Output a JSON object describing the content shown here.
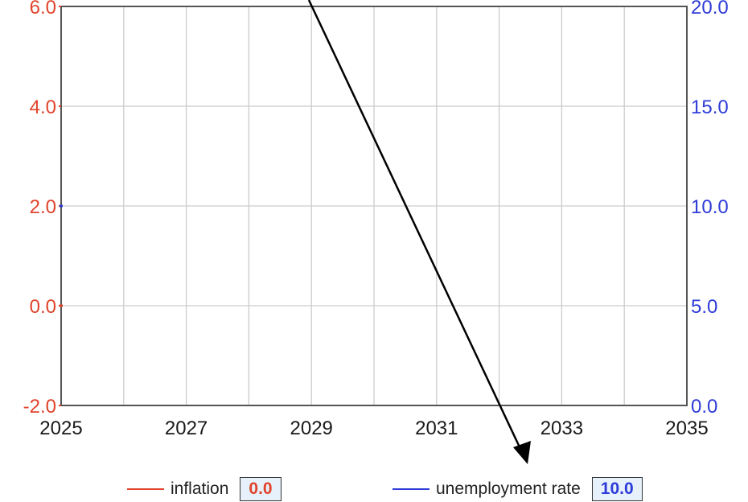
{
  "colors": {
    "left_axis": "#e0442c",
    "right_axis": "#2e3bd8",
    "grid": "#cccccc",
    "frame": "#555555",
    "arrow": "#000000"
  },
  "chart_data": {
    "type": "line",
    "x_ticks": [
      "2025",
      "2027",
      "2029",
      "2031",
      "2033",
      "2035"
    ],
    "xlim": [
      2025,
      2035
    ],
    "y_left_ticks": [
      "6.0",
      "4.0",
      "2.0",
      "0.0",
      "-2.0"
    ],
    "ylim_left": [
      -2,
      6
    ],
    "y_right_ticks": [
      "20.0",
      "15.0",
      "10.0",
      "5.0",
      "0.0"
    ],
    "ylim_right": [
      0,
      20
    ],
    "grid": true,
    "legend_position": "bottom",
    "series": [
      {
        "name": "inflation",
        "axis": "left",
        "color": "#e0442c",
        "x": [
          2025
        ],
        "values": [
          0.0
        ]
      },
      {
        "name": "unemployment rate",
        "axis": "right",
        "color": "#2e3bd8",
        "x": [
          2025
        ],
        "values": [
          10.0
        ]
      }
    ]
  },
  "legend": {
    "items": [
      {
        "label": "inflation",
        "value": "0.0",
        "color": "#e0442c"
      },
      {
        "label": "unemployment rate",
        "value": "10.0",
        "color": "#2e3bd8"
      }
    ]
  }
}
